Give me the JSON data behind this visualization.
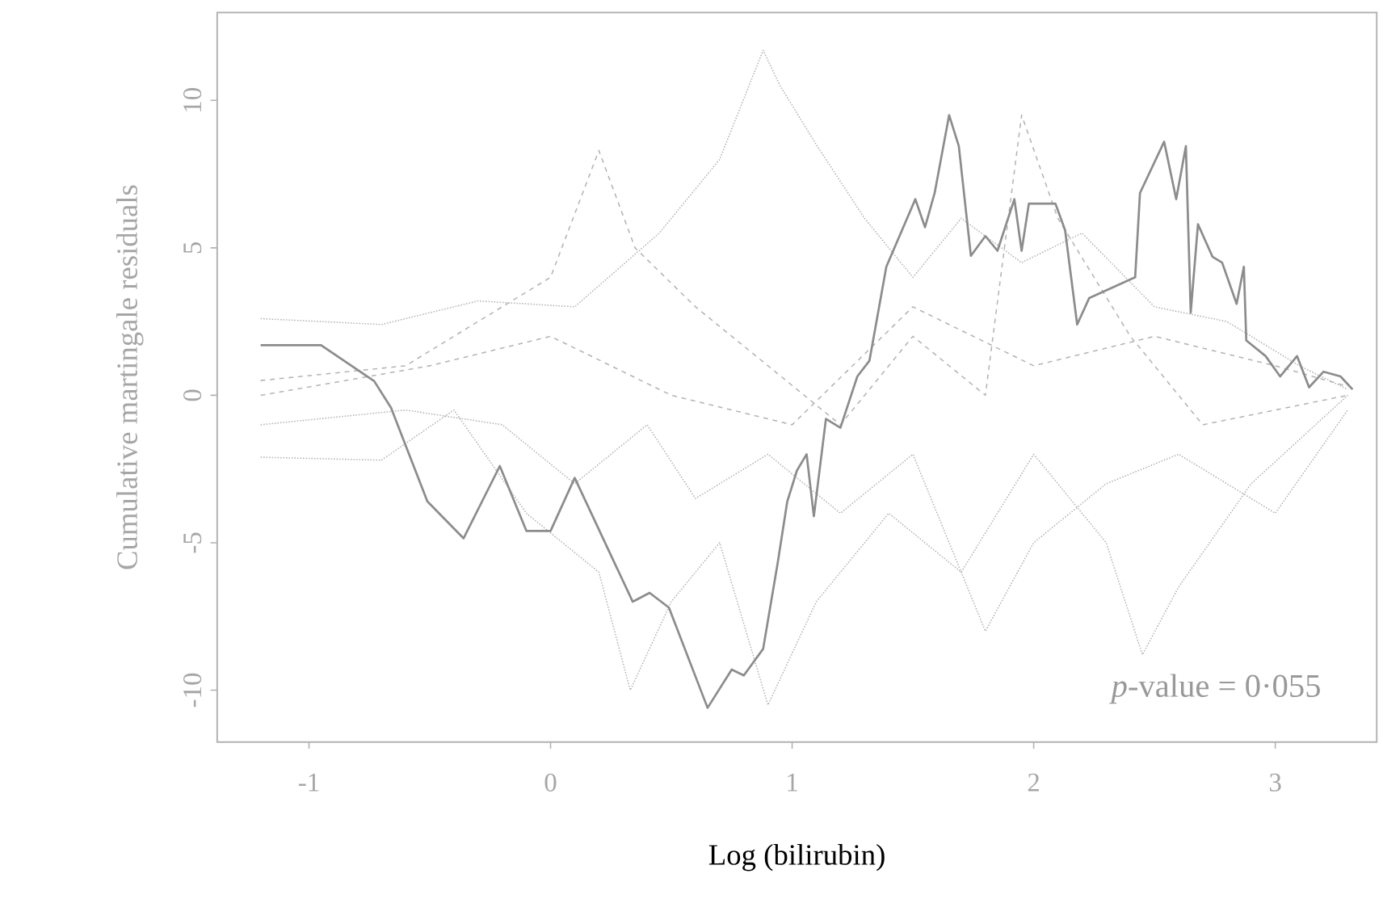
{
  "chart_data": {
    "type": "line",
    "xlabel": "Log (bilirubin)",
    "ylabel": "Cumulative martingale residuals",
    "annotations": [
      "*p*-value = 0·055"
    ],
    "xlim": [
      -1.38,
      3.42
    ],
    "ylim": [
      -11.76,
      12.98
    ],
    "xticks": [
      -1,
      0,
      1,
      2,
      3
    ],
    "yticks": [
      -10,
      -5,
      0,
      5,
      10
    ],
    "grid": false,
    "marker": "none",
    "series": [
      {
        "color": "#b4b4b4",
        "line_style": "dotted",
        "x": [
          -1.2,
          -0.7,
          -0.3,
          0.1,
          0.45,
          0.7,
          0.88,
          0.95,
          1.1,
          1.3,
          1.5,
          1.7,
          1.95,
          2.2,
          2.5,
          2.8,
          3.1,
          3.3
        ],
        "values": [
          2.6,
          2.4,
          3.2,
          3.0,
          5.5,
          8.0,
          11.7,
          10.5,
          8.5,
          6.0,
          4.0,
          6.0,
          4.5,
          5.5,
          3.0,
          2.5,
          1.0,
          0.2
        ]
      },
      {
        "color": "#b4b4b4",
        "line_style": "dotted",
        "x": [
          -1.2,
          -0.7,
          -0.4,
          -0.1,
          0.2,
          0.33,
          0.5,
          0.7,
          0.9,
          1.1,
          1.4,
          1.7,
          2.0,
          2.3,
          2.45,
          2.6,
          2.9,
          3.1,
          3.3
        ],
        "values": [
          -2.1,
          -2.2,
          -0.5,
          -4.0,
          -6.0,
          -10.0,
          -7.0,
          -5.0,
          -10.5,
          -7.0,
          -4.0,
          -6.0,
          -2.0,
          -5.0,
          -8.8,
          -6.5,
          -3.0,
          -1.5,
          0.0
        ]
      },
      {
        "color": "#b4b4b4",
        "line_style": "dashed",
        "x": [
          -1.2,
          -0.6,
          -0.2,
          0.0,
          0.2,
          0.35,
          0.6,
          0.9,
          1.2,
          1.5,
          1.8,
          1.95,
          2.1,
          2.4,
          2.7,
          3.0,
          3.3
        ],
        "values": [
          0.5,
          1.0,
          3.0,
          4.0,
          8.3,
          5.0,
          3.0,
          1.0,
          -1.0,
          2.0,
          0.0,
          9.5,
          6.0,
          2.0,
          -1.0,
          -0.5,
          0.0
        ]
      },
      {
        "color": "#b4b4b4",
        "line_style": "dotted",
        "x": [
          -1.2,
          -0.6,
          -0.2,
          0.1,
          0.4,
          0.6,
          0.9,
          1.2,
          1.5,
          1.8,
          2.0,
          2.3,
          2.6,
          3.0,
          3.3
        ],
        "values": [
          -1.0,
          -0.5,
          -1.0,
          -3.0,
          -1.0,
          -3.5,
          -2.0,
          -4.0,
          -2.0,
          -8.0,
          -5.0,
          -3.0,
          -2.0,
          -4.0,
          -0.5
        ]
      },
      {
        "color": "#b4b4b4",
        "line_style": "dashed",
        "x": [
          -1.2,
          -0.5,
          0.0,
          0.5,
          1.0,
          1.5,
          2.0,
          2.5,
          3.0,
          3.3
        ],
        "values": [
          0.0,
          1.0,
          2.0,
          0.0,
          -1.0,
          3.0,
          1.0,
          2.0,
          1.0,
          0.3
        ]
      },
      {
        "color": "#8c8c8c",
        "line_style": "solid",
        "x": [
          -1.2,
          -0.95,
          -0.73,
          -0.66,
          -0.51,
          -0.36,
          -0.21,
          -0.1,
          0.0,
          0.1,
          0.34,
          0.41,
          0.49,
          0.65,
          0.75,
          0.8,
          0.88,
          0.94,
          0.98,
          1.02,
          1.06,
          1.09,
          1.14,
          1.2,
          1.27,
          1.32,
          1.39,
          1.51,
          1.55,
          1.59,
          1.65,
          1.69,
          1.74,
          1.8,
          1.85,
          1.92,
          1.95,
          1.98,
          2.09,
          2.13,
          2.18,
          2.23,
          2.42,
          2.44,
          2.54,
          2.59,
          2.63,
          2.65,
          2.68,
          2.74,
          2.78,
          2.84,
          2.87,
          2.88,
          2.96,
          3.02,
          3.09,
          3.14,
          3.2,
          3.27,
          3.32
        ],
        "values": [
          1.7,
          1.7,
          0.48,
          -0.43,
          -3.6,
          -4.85,
          -2.4,
          -4.6,
          -4.6,
          -2.8,
          -7.0,
          -6.7,
          -7.2,
          -10.6,
          -9.3,
          -9.5,
          -8.6,
          -5.7,
          -3.6,
          -2.55,
          -2.0,
          -4.1,
          -0.8,
          -1.1,
          0.64,
          1.17,
          4.36,
          6.65,
          5.7,
          6.86,
          9.5,
          8.45,
          4.73,
          5.4,
          4.9,
          6.65,
          4.9,
          6.5,
          6.5,
          5.6,
          2.4,
          3.3,
          4.0,
          6.86,
          8.6,
          6.65,
          8.45,
          2.8,
          5.8,
          4.7,
          4.5,
          3.1,
          4.36,
          1.86,
          1.33,
          0.64,
          1.33,
          0.27,
          0.8,
          0.64,
          0.2
        ]
      }
    ]
  }
}
